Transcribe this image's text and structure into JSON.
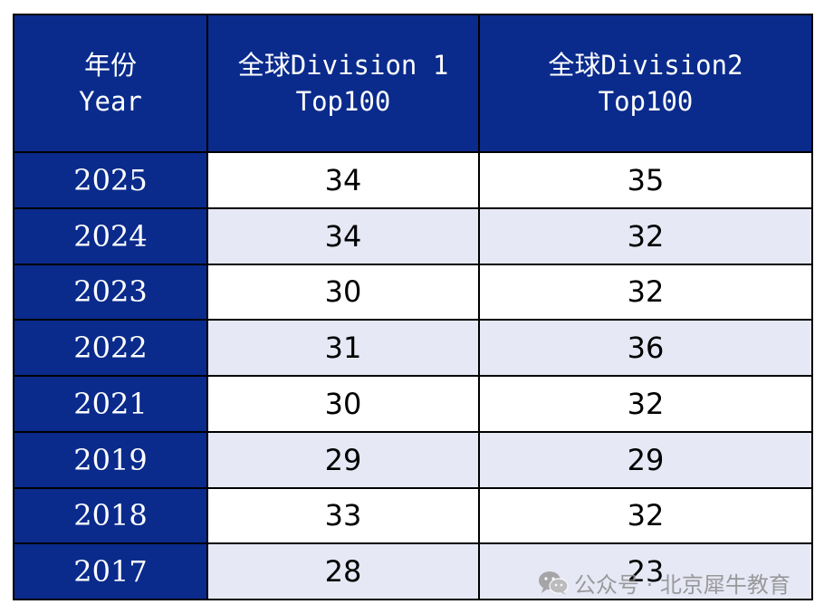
{
  "table": {
    "header": {
      "year_line1": "年份",
      "year_line2": "Year",
      "d1_line1": "全球Division 1",
      "d1_line2": "Top100",
      "d2_line1": "全球Division2",
      "d2_line2": "Top100"
    },
    "rows": [
      {
        "year": "2025",
        "d1": "34",
        "d2": "35"
      },
      {
        "year": "2024",
        "d1": "34",
        "d2": "32"
      },
      {
        "year": "2023",
        "d1": "30",
        "d2": "32"
      },
      {
        "year": "2022",
        "d1": "31",
        "d2": "36"
      },
      {
        "year": "2021",
        "d1": "30",
        "d2": "32"
      },
      {
        "year": "2019",
        "d1": "29",
        "d2": "29"
      },
      {
        "year": "2018",
        "d1": "33",
        "d2": "32"
      },
      {
        "year": "2017",
        "d1": "28",
        "d2": "23"
      }
    ]
  },
  "watermark": {
    "icon": "wechat-icon",
    "label": "公众号 · 北京犀牛教育"
  },
  "colors": {
    "header_bg": "#0a2b8c",
    "stripe": "#e6e8f5"
  }
}
